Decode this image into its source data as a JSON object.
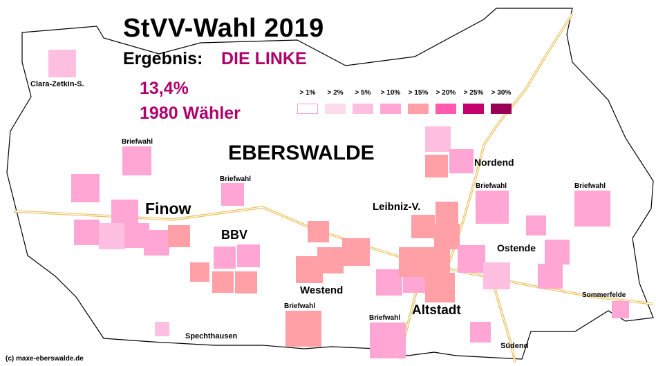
{
  "header": {
    "title": "StVV-Wahl 2019",
    "result_label": "Ergebnis:",
    "party": "DIE LINKE",
    "percentage": "13,4%",
    "voters": "1980 Wähler"
  },
  "city": "EBERSWALDE",
  "copyright": "(c) maxe-eberswalde.de",
  "colors": {
    "accent": "#b0006b",
    "legend": [
      "#ffffff",
      "#ffd9ec",
      "#ffbfe0",
      "#ffa6d5",
      "#ff9fa6",
      "#ff5aae",
      "#c4006e",
      "#990055"
    ],
    "road": "#e8c15a",
    "border": "#000000"
  },
  "legend": [
    ">  1%",
    ">  2%",
    ">  5%",
    "> 10%",
    "> 15%",
    "> 20%",
    "> 25%",
    "> 30%"
  ],
  "districts": [
    {
      "name": "Clara-Zetkin-S.",
      "size": "small"
    },
    {
      "name": "Finow",
      "size": "large"
    },
    {
      "name": "BBV",
      "size": "medium"
    },
    {
      "name": "Westend",
      "size": "medium"
    },
    {
      "name": "Leibniz-V.",
      "size": "medium"
    },
    {
      "name": "Nordend",
      "size": "medium"
    },
    {
      "name": "Ostende",
      "size": "medium"
    },
    {
      "name": "Altstadt",
      "size": "medium-large"
    },
    {
      "name": "Spechthausen",
      "size": "small"
    },
    {
      "name": "Südend",
      "size": "small"
    },
    {
      "name": "Sommerfelde",
      "size": "small"
    }
  ],
  "briefwahl_label": "Briefwahl",
  "precincts": [
    {
      "level": 2,
      "label": ""
    },
    {
      "level": 3,
      "label": "Briefwahl"
    },
    {
      "level": 3,
      "label": "Briefwahl"
    },
    {
      "level": 3,
      "label": ""
    },
    {
      "level": 3,
      "label": ""
    },
    {
      "level": 3,
      "label": ""
    },
    {
      "level": 2,
      "label": ""
    },
    {
      "level": 3,
      "label": ""
    },
    {
      "level": 3,
      "label": ""
    },
    {
      "level": 4,
      "label": ""
    },
    {
      "level": 3,
      "label": ""
    },
    {
      "level": 3,
      "label": ""
    },
    {
      "level": 4,
      "label": ""
    },
    {
      "level": 4,
      "label": ""
    },
    {
      "level": 4,
      "label": ""
    },
    {
      "level": 4,
      "label": ""
    },
    {
      "level": 4,
      "label": ""
    },
    {
      "level": 4,
      "label": "Briefwahl"
    },
    {
      "level": 4,
      "label": ""
    },
    {
      "level": 4,
      "label": ""
    },
    {
      "level": 3,
      "label": ""
    },
    {
      "level": 3,
      "label": ""
    },
    {
      "level": 4,
      "label": ""
    },
    {
      "level": 2,
      "label": ""
    },
    {
      "level": 4,
      "label": ""
    },
    {
      "level": 3,
      "label": ""
    },
    {
      "level": 4,
      "label": ""
    },
    {
      "level": 4,
      "label": ""
    },
    {
      "level": 4,
      "label": ""
    },
    {
      "level": 4,
      "label": ""
    },
    {
      "level": 4,
      "label": ""
    },
    {
      "level": 3,
      "label": ""
    },
    {
      "level": 3,
      "label": ""
    },
    {
      "level": 3,
      "label": ""
    },
    {
      "level": 3,
      "label": "Briefwahl"
    },
    {
      "level": 3,
      "label": ""
    },
    {
      "level": 3,
      "label": "Briefwahl"
    },
    {
      "level": 3,
      "label": ""
    },
    {
      "level": 2,
      "label": ""
    },
    {
      "level": 3,
      "label": ""
    },
    {
      "level": 3,
      "label": ""
    },
    {
      "level": 2,
      "label": ""
    },
    {
      "level": 3,
      "label": "Briefwahl"
    },
    {
      "level": 2,
      "label": ""
    },
    {
      "level": 4,
      "label": ""
    },
    {
      "level": 3,
      "label": ""
    }
  ]
}
